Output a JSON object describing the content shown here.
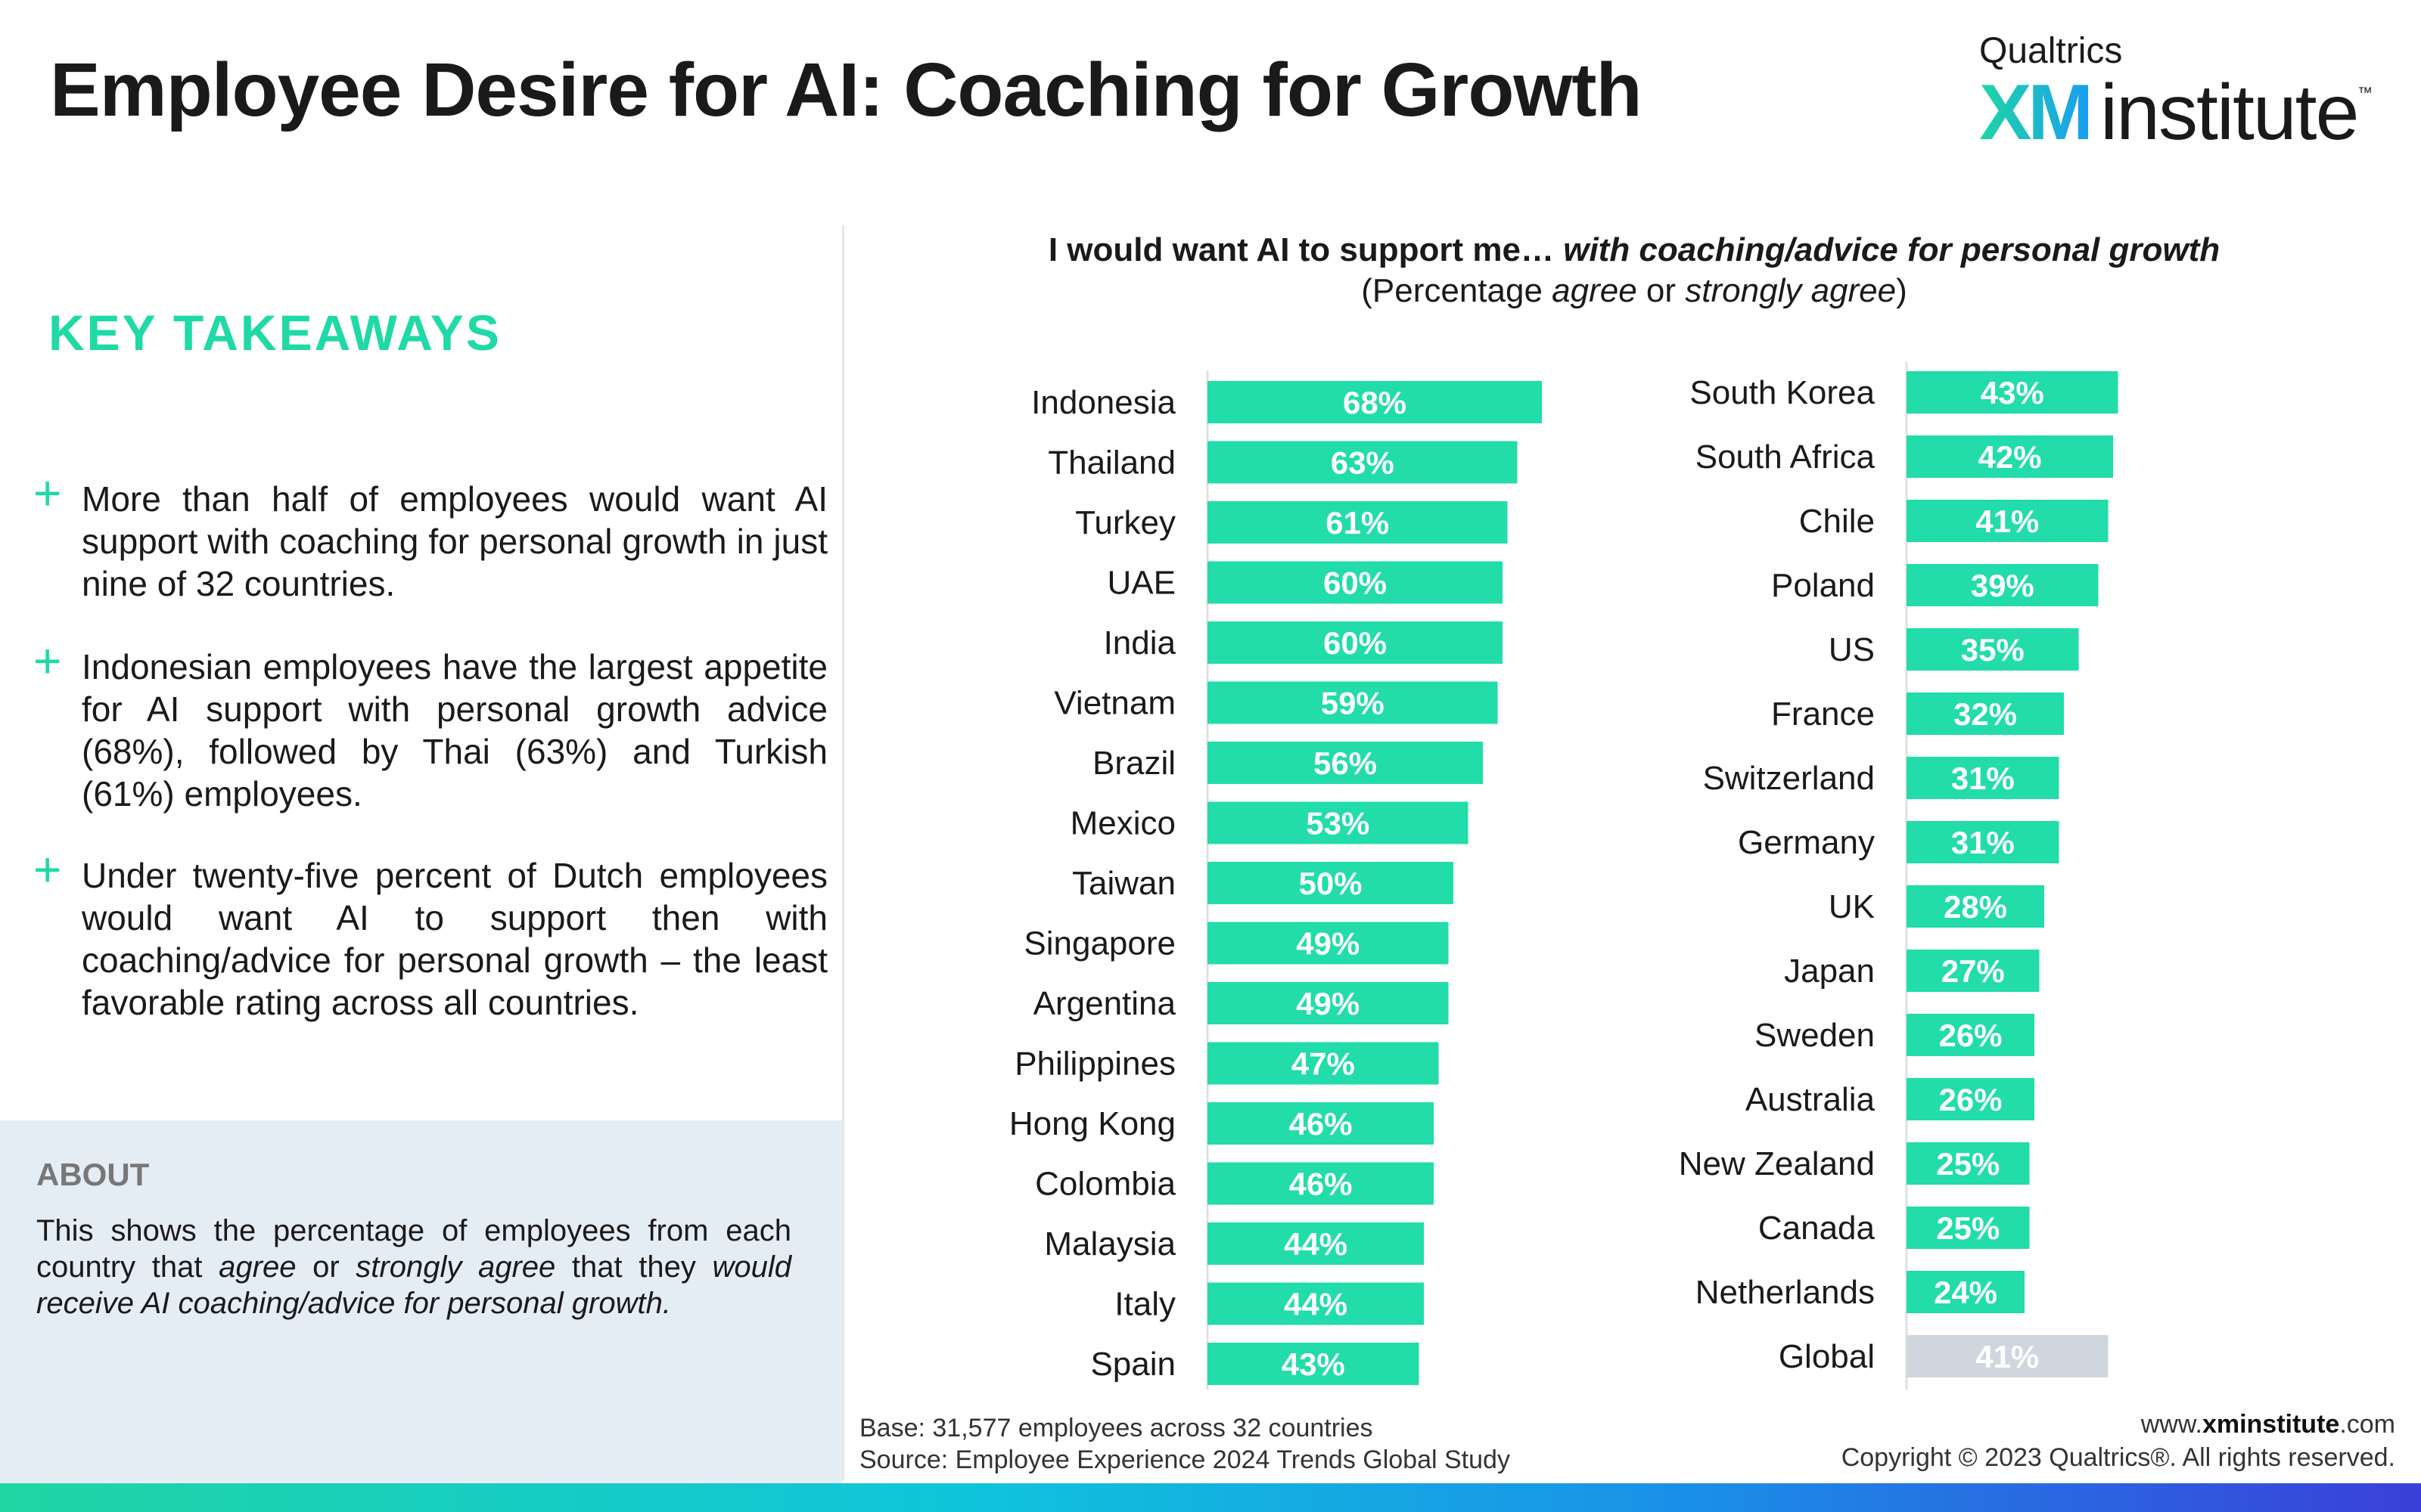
{
  "header": {
    "title": "Employee Desire for AI: Coaching for Growth",
    "logo": {
      "qualtrics": "Qualtrics",
      "xm": "XM",
      "institute": "institute",
      "tm": "™"
    }
  },
  "takeaways": {
    "heading": "KEY TAKEAWAYS",
    "items": [
      "More than half of employees would want AI support with coaching for personal growth in just nine of 32 countries.",
      "Indonesian employees have the largest appetite for AI support with personal growth advice (68%), followed by Thai (63%) and Turkish (61%) employees.",
      "Under twenty-five percent of Dutch employees would want AI to support then with coaching/advice for personal growth – the least favorable rating across all countries."
    ]
  },
  "about": {
    "heading": "ABOUT",
    "text_a": "This shows the percentage of employees from each country that ",
    "text_b": "agree",
    "text_c": " or ",
    "text_d": "strongly agree",
    "text_e": " that they ",
    "text_f": "would receive AI coaching/advice for personal growth."
  },
  "chart_data": {
    "type": "bar",
    "orientation": "horizontal",
    "title_plain": "I would want AI to support me… ",
    "title_italic": "with coaching/advice for personal growth",
    "subtitle_a": "(Percentage ",
    "subtitle_b": "agree",
    "subtitle_c": " or ",
    "subtitle_d": "strongly agree",
    "subtitle_e": ")",
    "value_suffix": "%",
    "colors": {
      "bar": "#22dcaa",
      "global_bar": "#cfd6dd",
      "label": "#ffffff"
    },
    "panels": [
      {
        "categories": [
          "Indonesia",
          "Thailand",
          "Turkey",
          "UAE",
          "India",
          "Vietnam",
          "Brazil",
          "Mexico",
          "Taiwan",
          "Singapore",
          "Argentina",
          "Philippines",
          "Hong Kong",
          "Colombia",
          "Malaysia",
          "Italy",
          "Spain"
        ],
        "values": [
          68,
          63,
          61,
          60,
          60,
          59,
          56,
          53,
          50,
          49,
          49,
          47,
          46,
          46,
          44,
          44,
          43
        ]
      },
      {
        "categories": [
          "South Korea",
          "South Africa",
          "Chile",
          "Poland",
          "US",
          "France",
          "Switzerland",
          "Germany",
          "UK",
          "Japan",
          "Sweden",
          "Australia",
          "New Zealand",
          "Canada",
          "Netherlands",
          "Global"
        ],
        "values": [
          43,
          42,
          41,
          39,
          35,
          32,
          31,
          31,
          28,
          27,
          26,
          26,
          25,
          25,
          24,
          41
        ],
        "highlight": [
          "Global"
        ]
      }
    ]
  },
  "footer": {
    "base": "Base: 31,577 employees across 32 countries",
    "source": "Source: Employee Experience 2024 Trends Global Study",
    "site_a": "www.",
    "site_b": "xminstitute",
    "site_c": ".com",
    "copyright": "Copyright © 2023 Qualtrics®. All rights reserved."
  }
}
